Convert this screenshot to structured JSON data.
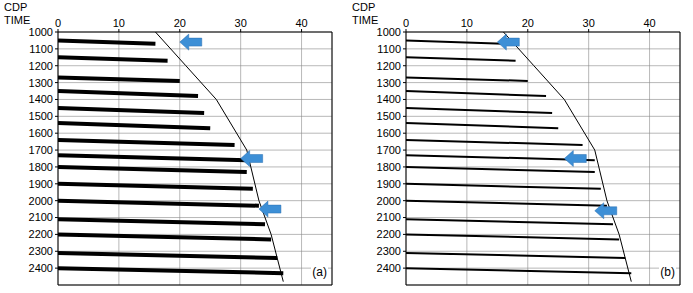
{
  "chart_data": [
    {
      "type": "line",
      "panel_label": "(a)",
      "x_label": "CDP",
      "y_label": "TIME",
      "xlim": [
        0,
        45
      ],
      "xticks": [
        0,
        10,
        20,
        30,
        40
      ],
      "ylim": [
        1000,
        2500
      ],
      "yticks": [
        1000,
        1100,
        1200,
        1300,
        1400,
        1500,
        1600,
        1700,
        1800,
        1900,
        2000,
        2100,
        2200,
        2300,
        2400
      ],
      "grid": true,
      "series": [
        {
          "x": [
            0,
            16
          ],
          "values": [
            1050,
            1070
          ],
          "color": "#000000"
        },
        {
          "x": [
            0,
            18
          ],
          "values": [
            1150,
            1170
          ],
          "color": "#000000"
        },
        {
          "x": [
            0,
            20
          ],
          "values": [
            1270,
            1290
          ],
          "color": "#000000"
        },
        {
          "x": [
            0,
            23
          ],
          "values": [
            1350,
            1380
          ],
          "color": "#000000"
        },
        {
          "x": [
            0,
            24
          ],
          "values": [
            1450,
            1480
          ],
          "color": "#000000"
        },
        {
          "x": [
            0,
            25
          ],
          "values": [
            1540,
            1570
          ],
          "color": "#000000"
        },
        {
          "x": [
            0,
            29
          ],
          "values": [
            1640,
            1670
          ],
          "color": "#000000"
        },
        {
          "x": [
            0,
            31
          ],
          "values": [
            1730,
            1760
          ],
          "color": "#000000"
        },
        {
          "x": [
            0,
            31
          ],
          "values": [
            1800,
            1830
          ],
          "color": "#000000"
        },
        {
          "x": [
            0,
            32
          ],
          "values": [
            1900,
            1930
          ],
          "color": "#000000"
        },
        {
          "x": [
            0,
            33
          ],
          "values": [
            2000,
            2030
          ],
          "color": "#000000"
        },
        {
          "x": [
            0,
            34
          ],
          "values": [
            2110,
            2140
          ],
          "color": "#000000"
        },
        {
          "x": [
            0,
            35
          ],
          "values": [
            2200,
            2230
          ],
          "color": "#000000"
        },
        {
          "x": [
            0,
            36
          ],
          "values": [
            2310,
            2340
          ],
          "color": "#000000"
        },
        {
          "x": [
            0,
            37
          ],
          "values": [
            2400,
            2430
          ],
          "color": "#000000"
        }
      ],
      "edge": {
        "x": [
          16,
          21,
          26,
          31,
          33,
          35,
          37
        ],
        "values": [
          1000,
          1200,
          1400,
          1700,
          2000,
          2200,
          2480
        ],
        "color": "#000000"
      },
      "arrows": {
        "x": [
          20,
          30,
          33
        ],
        "values": [
          1060,
          1750,
          2050
        ],
        "color": "#3d8fd6"
      }
    },
    {
      "type": "line",
      "panel_label": "(b)",
      "x_label": "CDP",
      "y_label": "TIME",
      "xlim": [
        0,
        45
      ],
      "xticks": [
        0,
        10,
        20,
        30,
        40
      ],
      "ylim": [
        1000,
        2500
      ],
      "yticks": [
        1000,
        1100,
        1200,
        1300,
        1400,
        1500,
        1600,
        1700,
        1800,
        1900,
        2000,
        2100,
        2200,
        2300,
        2400
      ],
      "grid": true,
      "series": [
        {
          "x": [
            0,
            16
          ],
          "values": [
            1050,
            1070
          ],
          "color": "#000000"
        },
        {
          "x": [
            0,
            18
          ],
          "values": [
            1150,
            1170
          ],
          "color": "#000000"
        },
        {
          "x": [
            0,
            20
          ],
          "values": [
            1270,
            1290
          ],
          "color": "#000000"
        },
        {
          "x": [
            0,
            23
          ],
          "values": [
            1350,
            1380
          ],
          "color": "#000000"
        },
        {
          "x": [
            0,
            24
          ],
          "values": [
            1450,
            1480
          ],
          "color": "#000000"
        },
        {
          "x": [
            0,
            25
          ],
          "values": [
            1540,
            1570
          ],
          "color": "#000000"
        },
        {
          "x": [
            0,
            29
          ],
          "values": [
            1640,
            1670
          ],
          "color": "#000000"
        },
        {
          "x": [
            0,
            31
          ],
          "values": [
            1730,
            1760
          ],
          "color": "#000000"
        },
        {
          "x": [
            0,
            31
          ],
          "values": [
            1800,
            1830
          ],
          "color": "#000000"
        },
        {
          "x": [
            0,
            32
          ],
          "values": [
            1900,
            1930
          ],
          "color": "#000000"
        },
        {
          "x": [
            0,
            33
          ],
          "values": [
            2000,
            2030
          ],
          "color": "#000000"
        },
        {
          "x": [
            0,
            34
          ],
          "values": [
            2110,
            2140
          ],
          "color": "#000000"
        },
        {
          "x": [
            0,
            35
          ],
          "values": [
            2200,
            2230
          ],
          "color": "#000000"
        },
        {
          "x": [
            0,
            36
          ],
          "values": [
            2310,
            2340
          ],
          "color": "#000000"
        },
        {
          "x": [
            0,
            37
          ],
          "values": [
            2400,
            2430
          ],
          "color": "#000000"
        }
      ],
      "edge": {
        "x": [
          16,
          21,
          26,
          31,
          33,
          35,
          37
        ],
        "values": [
          1000,
          1200,
          1400,
          1700,
          2000,
          2200,
          2480
        ],
        "color": "#000000"
      },
      "arrows": {
        "x": [
          15,
          26,
          31
        ],
        "values": [
          1060,
          1750,
          2060
        ],
        "color": "#3d8fd6"
      }
    }
  ]
}
